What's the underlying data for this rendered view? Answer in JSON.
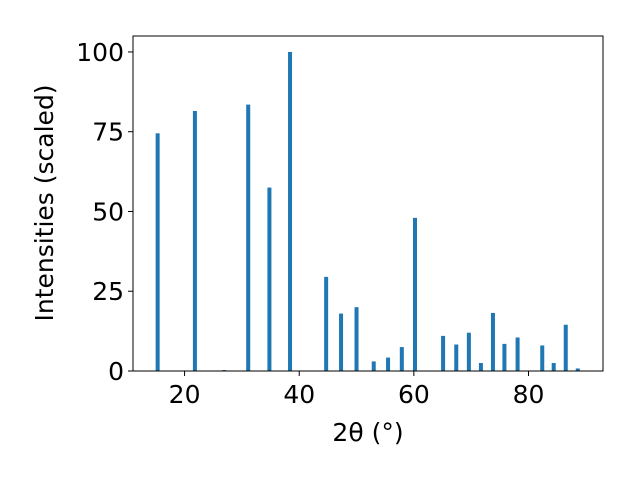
{
  "chart_data": {
    "type": "bar",
    "xlabel": "2θ (°)",
    "ylabel": "Intensities (scaled)",
    "xlim": [
      11,
      93
    ],
    "ylim": [
      0,
      105
    ],
    "x_ticks": [
      20,
      40,
      60,
      80
    ],
    "y_ticks": [
      0,
      25,
      50,
      75,
      100
    ],
    "grid": false,
    "bar_color": "#1f77b4",
    "bar_width_deg": 0.7,
    "series": [
      {
        "x": [
          15.3,
          21.8,
          26.9,
          31.1,
          34.8,
          38.4,
          44.7,
          47.3,
          50.0,
          53.0,
          55.5,
          57.9,
          60.2,
          65.1,
          67.4,
          69.6,
          71.7,
          73.8,
          75.8,
          78.1,
          82.4,
          84.4,
          86.5,
          88.6
        ],
        "values": [
          74.5,
          81.5,
          0.3,
          83.5,
          57.5,
          100.0,
          29.5,
          18.0,
          20.0,
          3.0,
          4.2,
          7.5,
          48.0,
          11.0,
          8.3,
          12.0,
          2.5,
          18.2,
          8.5,
          10.5,
          8.0,
          2.5,
          14.5,
          0.8
        ]
      }
    ]
  }
}
